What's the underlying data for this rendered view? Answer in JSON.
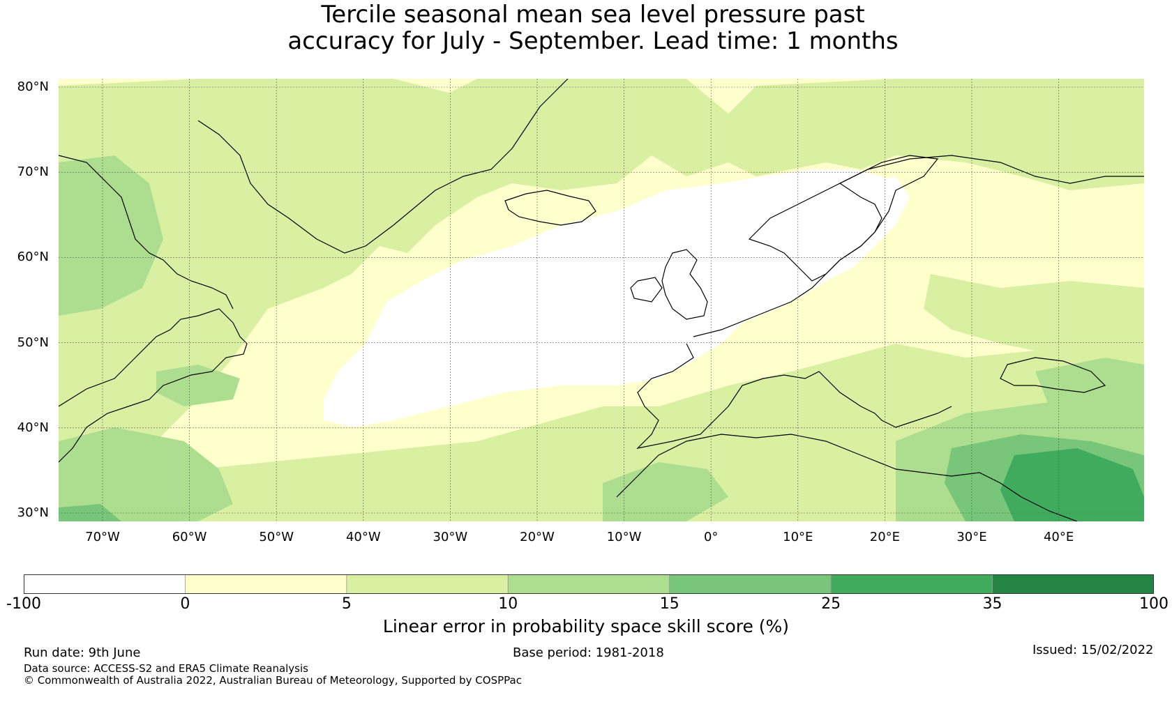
{
  "title_line1": "Tercile seasonal mean sea level pressure past",
  "title_line2": "accuracy for July - September. Lead time: 1 months",
  "lat_labels": [
    "80°N",
    "70°N",
    "60°N",
    "50°N",
    "40°N",
    "30°N"
  ],
  "lon_labels": [
    "70°W",
    "60°W",
    "50°W",
    "40°W",
    "30°W",
    "20°W",
    "10°W",
    "0°",
    "10°E",
    "20°E",
    "30°E",
    "40°E"
  ],
  "colorbar": {
    "ticks": [
      "-100",
      "0",
      "5",
      "10",
      "15",
      "25",
      "35",
      "100"
    ],
    "colors": [
      "#ffffff",
      "#ffffcc",
      "#d9f0a3",
      "#addd8e",
      "#78c679",
      "#41ab5d",
      "#238443"
    ],
    "label": "Linear error in probability space skill score (%)"
  },
  "footer": {
    "run_date": "Run date: 9th June",
    "base_period": "Base period: 1981-2018",
    "issued": "Issued: 15/02/2022",
    "data_source": "Data source: ACCESS-S2 and ERA5 Climate Reanalysis",
    "copyright": "© Commonwealth of Australia 2022, Australian Bureau of Meteorology, Supported by COSPPac"
  }
}
